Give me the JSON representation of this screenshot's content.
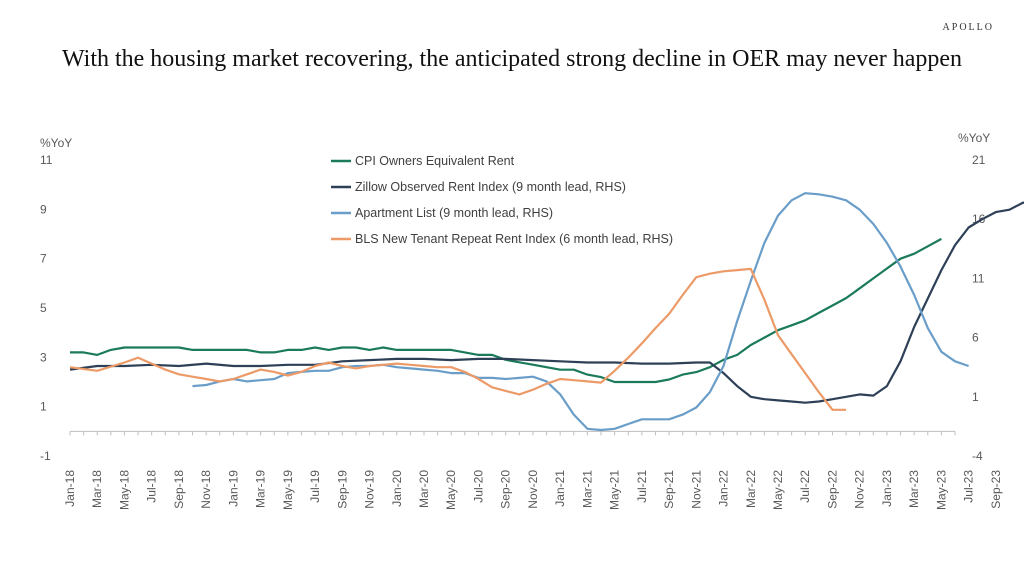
{
  "brand": "APOLLO",
  "title": "With the housing market recovering, the anticipated strong decline in OER may never happen",
  "chart_data": {
    "type": "line",
    "y_left": {
      "label": "%YoY",
      "min": -1,
      "max": 11,
      "ticks": [
        -1,
        1,
        3,
        5,
        7,
        9,
        11
      ]
    },
    "y_right": {
      "label": "%YoY",
      "min": -4,
      "max": 21,
      "ticks": [
        -4,
        1,
        6,
        11,
        16,
        21
      ]
    },
    "x_labels": [
      "Jan-18",
      "Mar-18",
      "May-18",
      "Jul-18",
      "Sep-18",
      "Nov-18",
      "Jan-19",
      "Mar-19",
      "May-19",
      "Jul-19",
      "Sep-19",
      "Nov-19",
      "Jan-20",
      "Mar-20",
      "May-20",
      "Jul-20",
      "Sep-20",
      "Nov-20",
      "Jan-21",
      "Mar-21",
      "May-21",
      "Jul-21",
      "Sep-21",
      "Nov-21",
      "Jan-22",
      "Mar-22",
      "May-22",
      "Jul-22",
      "Sep-22",
      "Nov-22",
      "Jan-23",
      "Mar-23",
      "May-23",
      "Jul-23",
      "Sep-23"
    ],
    "legend_position": "top-center",
    "grid": false,
    "series": [
      {
        "name": "CPI Owners Equivalent Rent",
        "axis": "left",
        "color": "#1a7a5a",
        "points": [
          [
            0,
            3.2
          ],
          [
            1,
            3.2
          ],
          [
            2,
            3.1
          ],
          [
            3,
            3.3
          ],
          [
            4,
            3.4
          ],
          [
            5,
            3.4
          ],
          [
            6,
            3.4
          ],
          [
            7,
            3.4
          ],
          [
            8,
            3.4
          ],
          [
            9,
            3.3
          ],
          [
            10,
            3.3
          ],
          [
            11,
            3.3
          ],
          [
            12,
            3.3
          ],
          [
            13,
            3.3
          ],
          [
            14,
            3.2
          ],
          [
            15,
            3.2
          ],
          [
            16,
            3.3
          ],
          [
            17,
            3.3
          ],
          [
            18,
            3.4
          ],
          [
            19,
            3.3
          ],
          [
            20,
            3.4
          ],
          [
            21,
            3.4
          ],
          [
            22,
            3.3
          ],
          [
            23,
            3.4
          ],
          [
            24,
            3.3
          ],
          [
            25,
            3.3
          ],
          [
            26,
            3.3
          ],
          [
            27,
            3.3
          ],
          [
            28,
            3.3
          ],
          [
            29,
            3.2
          ],
          [
            30,
            3.1
          ],
          [
            31,
            3.1
          ],
          [
            32,
            2.9
          ],
          [
            33,
            2.8
          ],
          [
            34,
            2.7
          ],
          [
            35,
            2.6
          ],
          [
            36,
            2.5
          ],
          [
            37,
            2.5
          ],
          [
            38,
            2.3
          ],
          [
            39,
            2.2
          ],
          [
            40,
            2.0
          ],
          [
            41,
            2.0
          ],
          [
            42,
            2.0
          ],
          [
            43,
            2.0
          ],
          [
            44,
            2.1
          ],
          [
            45,
            2.3
          ],
          [
            46,
            2.4
          ],
          [
            47,
            2.6
          ],
          [
            48,
            2.9
          ],
          [
            49,
            3.1
          ],
          [
            50,
            3.5
          ],
          [
            51,
            3.8
          ],
          [
            52,
            4.1
          ],
          [
            53,
            4.3
          ],
          [
            54,
            4.5
          ],
          [
            55,
            4.8
          ],
          [
            56,
            5.1
          ],
          [
            57,
            5.4
          ],
          [
            58,
            5.8
          ],
          [
            59,
            6.2
          ],
          [
            60,
            6.6
          ],
          [
            61,
            7.0
          ],
          [
            62,
            7.2
          ],
          [
            63,
            7.5
          ],
          [
            64,
            7.8
          ]
        ]
      },
      {
        "name": "Zillow Observed Rent Index (9 month lead, RHS)",
        "axis": "right",
        "color": "#2e4057",
        "points": [
          [
            0,
            3.3
          ],
          [
            2,
            3.6
          ],
          [
            4,
            3.6
          ],
          [
            6,
            3.7
          ],
          [
            8,
            3.6
          ],
          [
            10,
            3.8
          ],
          [
            12,
            3.6
          ],
          [
            14,
            3.6
          ],
          [
            16,
            3.7
          ],
          [
            18,
            3.7
          ],
          [
            20,
            4.0
          ],
          [
            22,
            4.1
          ],
          [
            24,
            4.2
          ],
          [
            26,
            4.2
          ],
          [
            28,
            4.1
          ],
          [
            30,
            4.2
          ],
          [
            32,
            4.2
          ],
          [
            34,
            4.1
          ],
          [
            36,
            4.0
          ],
          [
            38,
            3.9
          ],
          [
            40,
            3.9
          ],
          [
            42,
            3.8
          ],
          [
            44,
            3.8
          ],
          [
            46,
            3.9
          ],
          [
            47,
            3.9
          ],
          [
            48,
            3.0
          ],
          [
            49,
            1.9
          ],
          [
            50,
            1.0
          ],
          [
            51,
            0.8
          ],
          [
            52,
            0.7
          ],
          [
            53,
            0.6
          ],
          [
            54,
            0.5
          ],
          [
            55,
            0.6
          ],
          [
            56,
            0.8
          ],
          [
            57,
            1.0
          ],
          [
            58,
            1.2
          ],
          [
            59,
            1.1
          ],
          [
            60,
            1.9
          ],
          [
            61,
            4.0
          ],
          [
            62,
            6.9
          ],
          [
            63,
            9.3
          ],
          [
            64,
            11.7
          ],
          [
            65,
            13.8
          ],
          [
            66,
            15.3
          ],
          [
            67,
            16.0
          ],
          [
            68,
            16.6
          ],
          [
            69,
            16.8
          ],
          [
            70,
            17.4
          ],
          [
            71,
            17.2
          ],
          [
            72,
            17.0
          ],
          [
            73,
            16.0
          ],
          [
            74,
            14.8
          ],
          [
            75,
            13.2
          ],
          [
            76,
            11.5
          ],
          [
            77,
            10.0
          ],
          [
            78,
            8.8
          ],
          [
            79,
            7.5
          ],
          [
            80,
            6.6
          ]
        ]
      },
      {
        "name": "Apartment List (9 month lead, RHS)",
        "axis": "right",
        "color": "#6a9ec9",
        "points": [
          [
            9,
            1.9
          ],
          [
            10,
            2.0
          ],
          [
            11,
            2.3
          ],
          [
            12,
            2.5
          ],
          [
            13,
            2.3
          ],
          [
            14,
            2.4
          ],
          [
            15,
            2.5
          ],
          [
            16,
            3.0
          ],
          [
            17,
            3.1
          ],
          [
            18,
            3.2
          ],
          [
            19,
            3.2
          ],
          [
            20,
            3.5
          ],
          [
            21,
            3.6
          ],
          [
            22,
            3.6
          ],
          [
            23,
            3.7
          ],
          [
            24,
            3.5
          ],
          [
            25,
            3.4
          ],
          [
            26,
            3.3
          ],
          [
            27,
            3.2
          ],
          [
            28,
            3.0
          ],
          [
            29,
            3.0
          ],
          [
            30,
            2.6
          ],
          [
            31,
            2.6
          ],
          [
            32,
            2.5
          ],
          [
            33,
            2.6
          ],
          [
            34,
            2.7
          ],
          [
            35,
            2.3
          ],
          [
            36,
            1.2
          ],
          [
            37,
            -0.5
          ],
          [
            38,
            -1.7
          ],
          [
            39,
            -1.8
          ],
          [
            40,
            -1.7
          ],
          [
            41,
            -1.3
          ],
          [
            42,
            -0.9
          ],
          [
            43,
            -0.9
          ],
          [
            44,
            -0.9
          ],
          [
            45,
            -0.5
          ],
          [
            46,
            0.1
          ],
          [
            47,
            1.4
          ],
          [
            48,
            3.6
          ],
          [
            49,
            7.4
          ],
          [
            50,
            10.8
          ],
          [
            51,
            14.0
          ],
          [
            52,
            16.3
          ],
          [
            53,
            17.6
          ],
          [
            54,
            18.2
          ],
          [
            55,
            18.1
          ],
          [
            56,
            17.9
          ],
          [
            57,
            17.6
          ],
          [
            58,
            16.8
          ],
          [
            59,
            15.6
          ],
          [
            60,
            14.0
          ],
          [
            61,
            12.0
          ],
          [
            62,
            9.6
          ],
          [
            63,
            6.8
          ],
          [
            64,
            4.8
          ],
          [
            65,
            4.0
          ],
          [
            66,
            3.6
          ]
        ]
      },
      {
        "name": "BLS New Tenant Repeat Rent Index (6 month lead, RHS)",
        "axis": "right",
        "color": "#ec9a67",
        "points": [
          [
            0,
            3.5
          ],
          [
            2,
            3.2
          ],
          [
            4,
            3.9
          ],
          [
            5,
            4.3
          ],
          [
            6,
            3.8
          ],
          [
            7,
            3.3
          ],
          [
            8,
            2.9
          ],
          [
            9,
            2.7
          ],
          [
            10,
            2.5
          ],
          [
            11,
            2.3
          ],
          [
            12,
            2.5
          ],
          [
            13,
            2.9
          ],
          [
            14,
            3.3
          ],
          [
            15,
            3.1
          ],
          [
            16,
            2.8
          ],
          [
            17,
            3.1
          ],
          [
            18,
            3.6
          ],
          [
            19,
            3.9
          ],
          [
            20,
            3.6
          ],
          [
            21,
            3.4
          ],
          [
            22,
            3.6
          ],
          [
            23,
            3.7
          ],
          [
            24,
            3.8
          ],
          [
            25,
            3.7
          ],
          [
            26,
            3.6
          ],
          [
            27,
            3.5
          ],
          [
            28,
            3.5
          ],
          [
            29,
            3.1
          ],
          [
            30,
            2.5
          ],
          [
            31,
            1.8
          ],
          [
            32,
            1.5
          ],
          [
            33,
            1.2
          ],
          [
            34,
            1.6
          ],
          [
            35,
            2.1
          ],
          [
            36,
            2.5
          ],
          [
            37,
            2.4
          ],
          [
            38,
            2.3
          ],
          [
            39,
            2.2
          ],
          [
            40,
            3.2
          ],
          [
            41,
            4.3
          ],
          [
            42,
            5.5
          ],
          [
            43,
            6.8
          ],
          [
            44,
            8.0
          ],
          [
            45,
            9.6
          ],
          [
            46,
            11.1
          ],
          [
            47,
            11.4
          ],
          [
            48,
            11.6
          ],
          [
            49,
            11.7
          ],
          [
            50,
            11.8
          ],
          [
            51,
            9.2
          ],
          [
            52,
            6.2
          ],
          [
            53,
            4.6
          ],
          [
            54,
            3.0
          ],
          [
            55,
            1.4
          ],
          [
            56,
            -0.1
          ],
          [
            57,
            -0.1
          ]
        ]
      }
    ]
  }
}
